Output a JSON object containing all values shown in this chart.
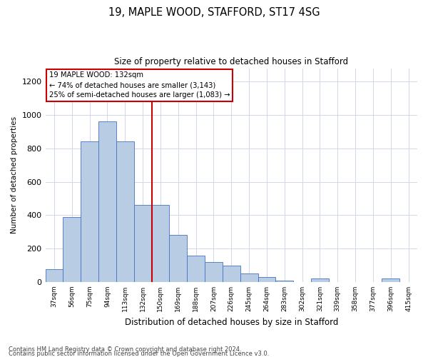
{
  "title1": "19, MAPLE WOOD, STAFFORD, ST17 4SG",
  "title2": "Size of property relative to detached houses in Stafford",
  "xlabel": "Distribution of detached houses by size in Stafford",
  "ylabel": "Number of detached properties",
  "categories": [
    "37sqm",
    "56sqm",
    "75sqm",
    "94sqm",
    "113sqm",
    "132sqm",
    "150sqm",
    "169sqm",
    "188sqm",
    "207sqm",
    "226sqm",
    "245sqm",
    "264sqm",
    "283sqm",
    "302sqm",
    "321sqm",
    "339sqm",
    "358sqm",
    "377sqm",
    "396sqm",
    "415sqm"
  ],
  "values": [
    75,
    390,
    840,
    960,
    840,
    460,
    460,
    280,
    160,
    120,
    100,
    50,
    30,
    10,
    0,
    20,
    0,
    0,
    0,
    20,
    0
  ],
  "bar_color": "#b8cce4",
  "bar_edge_color": "#4472c4",
  "vline_color": "#cc0000",
  "vline_x_index": 5,
  "annotation_title": "19 MAPLE WOOD: 132sqm",
  "annotation_line1": "← 74% of detached houses are smaller (3,143)",
  "annotation_line2": "25% of semi-detached houses are larger (1,083) →",
  "annotation_box_color": "#cc0000",
  "ylim": [
    0,
    1280
  ],
  "yticks": [
    0,
    200,
    400,
    600,
    800,
    1000,
    1200
  ],
  "footer1": "Contains HM Land Registry data © Crown copyright and database right 2024.",
  "footer2": "Contains public sector information licensed under the Open Government Licence v3.0.",
  "bg_color": "#ffffff",
  "grid_color": "#d0d8e8"
}
